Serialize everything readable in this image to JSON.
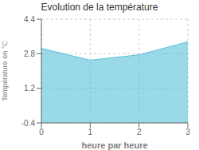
{
  "chart_data": {
    "type": "area",
    "title": "Evolution de la température",
    "xlabel": "heure par heure",
    "ylabel": "Température en °C",
    "x": [
      0,
      1,
      2,
      3
    ],
    "values": [
      3.05,
      2.5,
      2.75,
      3.35
    ],
    "color": "#56c0d8",
    "xlim": [
      0,
      3
    ],
    "ylim": [
      -0.4,
      4.4
    ],
    "xticks": [
      0,
      1,
      2,
      3
    ],
    "yticks": [
      -0.4,
      1.2,
      2.8,
      4.4
    ],
    "grid": true
  }
}
